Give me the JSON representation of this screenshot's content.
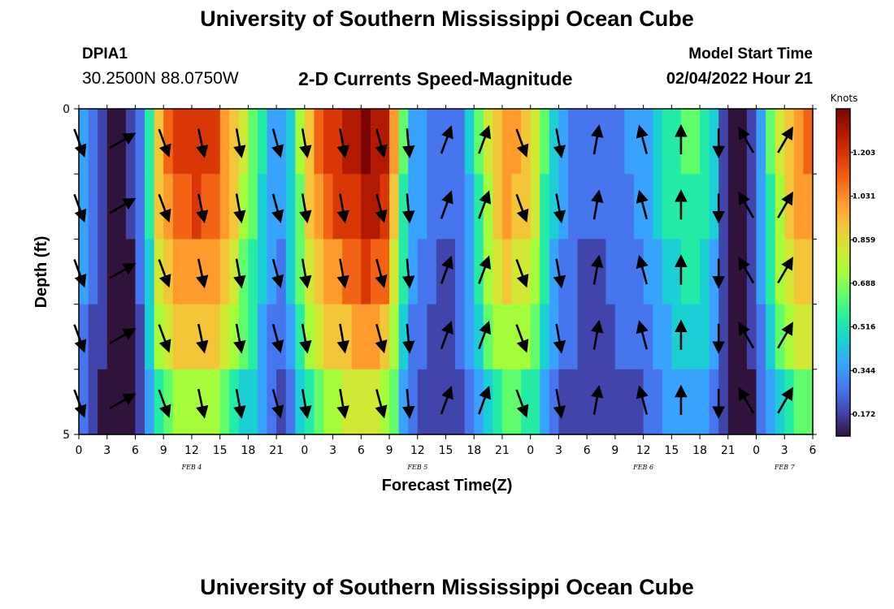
{
  "header": {
    "title": "University of Southern Mississippi Ocean Cube",
    "station_id": "DPIA1",
    "coordinates": "30.2500N  88.0750W",
    "product_title": "2-D Currents Speed-Magnitude",
    "model_start_label": "Model Start Time",
    "model_start_value": "02/04/2022 Hour 21"
  },
  "footer": {
    "title": "University of Southern Mississippi Ocean Cube"
  },
  "colors": {
    "palette": [
      "#30123b",
      "#4145ab",
      "#4675ed",
      "#39a2fc",
      "#1bcfd4",
      "#24eca6",
      "#61fc6c",
      "#a4fc3b",
      "#d1e834",
      "#f3c63a",
      "#fe9b2d",
      "#f36315",
      "#d93806",
      "#b11901",
      "#7a0402"
    ]
  },
  "chart_data": {
    "type": "heatmap",
    "xlabel": "Forecast Time(Z)",
    "ylabel": "Depth (ft)",
    "x_tick_labels": [
      "0",
      "3",
      "6",
      "9",
      "12",
      "15",
      "18",
      "21",
      "0",
      "3",
      "6",
      "9",
      "12",
      "15",
      "18",
      "21",
      "0",
      "3",
      "6",
      "9",
      "12",
      "15",
      "18",
      "21",
      "0",
      "3",
      "6"
    ],
    "x_range_hours": [
      0,
      78
    ],
    "date_labels": [
      {
        "label": "FEB 4",
        "hour": 12
      },
      {
        "label": "FEB 5",
        "hour": 36
      },
      {
        "label": "FEB 6",
        "hour": 60
      },
      {
        "label": "FEB 7",
        "hour": 75
      }
    ],
    "y_tick_labels": [
      {
        "label": "0",
        "depth": 0
      },
      {
        "label": "5",
        "depth": 5
      }
    ],
    "y_range_ft": [
      0,
      5
    ],
    "depth_levels_ft": [
      0.5,
      1.5,
      2.5,
      3.5,
      4.5
    ],
    "colorbar": {
      "units": "Knots",
      "min": 0.086,
      "max": 1.375,
      "tick_values": [
        0.172,
        0.344,
        0.516,
        0.688,
        0.859,
        1.031,
        1.203
      ],
      "tick_labels": [
        "0.172",
        "0.344",
        "0.516",
        "0.688",
        "0.859",
        "1.031",
        "1.203"
      ]
    },
    "speed_profile": {
      "hours": [
        0,
        1,
        2,
        3,
        4,
        5,
        6,
        7,
        8,
        9,
        10,
        11,
        12,
        13,
        14,
        15,
        16,
        17,
        18,
        19,
        20,
        21,
        22,
        23,
        24,
        25,
        26,
        27,
        28,
        29,
        30,
        31,
        32,
        33,
        34,
        35,
        36,
        37,
        38,
        39,
        40,
        41,
        42,
        43,
        44,
        45,
        46,
        47,
        48,
        49,
        50,
        51,
        52,
        53,
        54,
        55,
        56,
        57,
        58,
        59,
        60,
        61,
        62,
        63,
        64,
        65,
        66,
        67,
        68,
        69,
        70,
        71,
        72,
        73,
        74,
        75,
        76,
        77,
        78
      ],
      "surface_knots": [
        0.4,
        0.28,
        0.18,
        0.12,
        0.1,
        0.14,
        0.28,
        0.55,
        0.92,
        1.1,
        1.15,
        1.2,
        1.22,
        1.2,
        1.15,
        1.05,
        0.92,
        0.78,
        0.68,
        0.52,
        0.4,
        0.36,
        0.48,
        0.72,
        0.95,
        1.1,
        1.18,
        1.22,
        1.26,
        1.3,
        1.35,
        1.32,
        1.25,
        1.0,
        0.62,
        0.4,
        0.34,
        0.28,
        0.25,
        0.24,
        0.3,
        0.42,
        0.6,
        0.8,
        0.95,
        1.02,
        1.0,
        0.92,
        0.82,
        0.62,
        0.45,
        0.36,
        0.3,
        0.26,
        0.24,
        0.25,
        0.27,
        0.3,
        0.33,
        0.36,
        0.4,
        0.46,
        0.53,
        0.58,
        0.6,
        0.62,
        0.58,
        0.44,
        0.22,
        0.12,
        0.1,
        0.18,
        0.4,
        0.62,
        0.8,
        0.95,
        1.05,
        1.1,
        1.12
      ],
      "depth_factors": [
        1.0,
        0.95,
        0.86,
        0.76,
        0.62
      ]
    },
    "vectors": {
      "hours": [
        0,
        4.5,
        9,
        13,
        17,
        21,
        24,
        28,
        32,
        35,
        39,
        43,
        47,
        51,
        55,
        60,
        64,
        68,
        71,
        75
      ],
      "angles_deg": [
        160,
        60,
        160,
        168,
        170,
        165,
        170,
        170,
        165,
        175,
        20,
        20,
        160,
        170,
        10,
        345,
        0,
        180,
        330,
        30
      ]
    }
  }
}
